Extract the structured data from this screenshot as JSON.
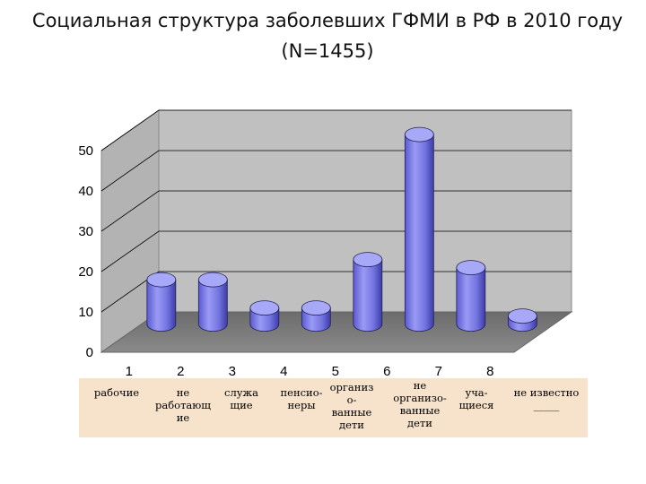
{
  "title": "Социальная  структура  заболевших ГФМИ в РФ в 2010 году (N=1455)",
  "chart_data": {
    "type": "bar",
    "title": "Социальная  структура  заболевших ГФМИ в РФ в 2010 году (N=1455)",
    "categories": [
      "1",
      "2",
      "3",
      "4",
      "5",
      "6",
      "7",
      "8"
    ],
    "values": [
      11,
      11,
      4,
      4,
      16,
      47,
      14,
      2
    ],
    "ylim": [
      0,
      50
    ],
    "yticks": [
      "0",
      "10",
      "20",
      "30",
      "40",
      "50"
    ],
    "grid": true,
    "style": "3d-cylinder",
    "colors": {
      "bar": "#8c8cf0",
      "wall": "#c0c0c0",
      "floor": "#7f7f7f"
    }
  },
  "legend": {
    "labels": [
      "рабочие",
      "не\nработающ\nие",
      "служа\nщие",
      "пенсио-\nнеры",
      "организ\nо-\nванные\nдети",
      "не\nорганизо-\nванные\nдети",
      "уча-\nщиеся",
      "не известно\n_____"
    ]
  }
}
